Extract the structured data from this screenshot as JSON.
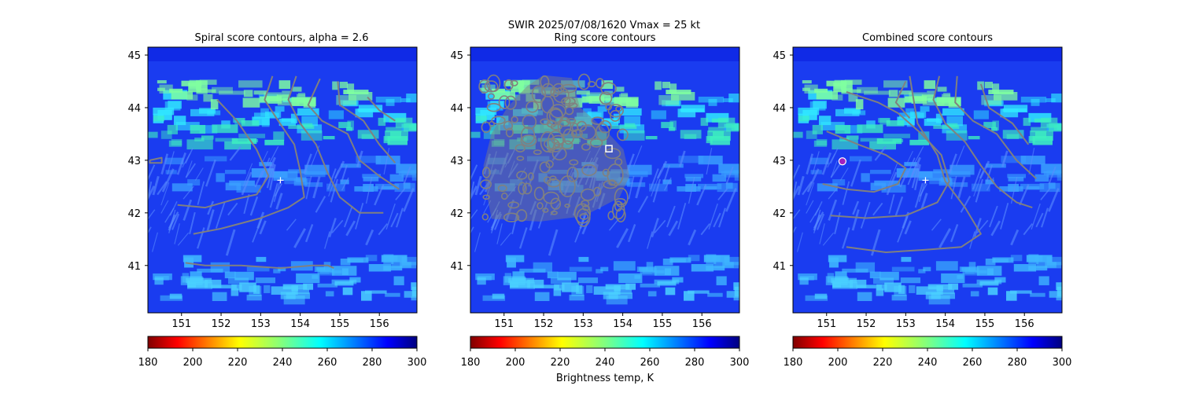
{
  "suptitle": {
    "line1": "SWIR  2025/07/08/1620    Vmax = 25 kt"
  },
  "colorbar": {
    "ticks": [
      "180",
      "200",
      "220",
      "240",
      "260",
      "280",
      "300"
    ],
    "range": [
      180,
      300
    ],
    "colormap": "jet_reversed",
    "label": "Brightness temp, K",
    "colors": [
      "#800000",
      "#ff0000",
      "#ff8000",
      "#ffff00",
      "#80ff80",
      "#00ffff",
      "#0080ff",
      "#0000ff",
      "#000080"
    ]
  },
  "colors": {
    "contour": "#808080",
    "background_field": "#1a3cf0",
    "marker": "#ffffff",
    "combined_marker_fill": "#a020c0"
  },
  "chart_data": [
    {
      "type": "heatmap",
      "title": "Spiral score contours, alpha =  2.6",
      "xticks": [
        "151",
        "152",
        "153",
        "154",
        "155",
        "156"
      ],
      "yticks": [
        "41",
        "42",
        "43",
        "44",
        "45"
      ],
      "xlim": [
        150.15,
        156.95
      ],
      "ylim": [
        40.1,
        45.15
      ],
      "marker": {
        "type": "plus",
        "lon": 153.5,
        "lat": 42.62
      },
      "contours": [
        [
          [
            151.9,
            44.15
          ],
          [
            152.4,
            43.75
          ],
          [
            152.9,
            43.2
          ],
          [
            153.2,
            42.7
          ],
          [
            152.9,
            42.35
          ],
          [
            152.3,
            42.25
          ],
          [
            151.6,
            42.1
          ],
          [
            150.9,
            42.15
          ]
        ],
        [
          [
            153.3,
            44.6
          ],
          [
            153.1,
            44.15
          ],
          [
            153.4,
            43.8
          ],
          [
            153.85,
            43.3
          ],
          [
            154.0,
            42.8
          ],
          [
            154.1,
            42.3
          ],
          [
            153.7,
            42.1
          ],
          [
            153.0,
            41.9
          ],
          [
            152.0,
            41.7
          ],
          [
            151.3,
            41.6
          ]
        ],
        [
          [
            153.9,
            44.6
          ],
          [
            153.7,
            44.15
          ],
          [
            154.0,
            43.7
          ],
          [
            154.4,
            43.3
          ],
          [
            154.7,
            42.75
          ],
          [
            155.0,
            42.3
          ],
          [
            155.5,
            42.0
          ],
          [
            156.1,
            42.0
          ]
        ],
        [
          [
            154.5,
            44.55
          ],
          [
            154.2,
            44.05
          ],
          [
            154.55,
            43.75
          ],
          [
            155.2,
            43.5
          ],
          [
            155.5,
            43.0
          ],
          [
            156.0,
            42.7
          ],
          [
            156.5,
            42.45
          ]
        ],
        [
          [
            154.95,
            44.5
          ],
          [
            155.0,
            44.05
          ],
          [
            155.6,
            43.75
          ],
          [
            156.0,
            43.3
          ],
          [
            156.4,
            42.95
          ]
        ],
        [
          [
            155.7,
            44.2
          ],
          [
            156.0,
            43.95
          ],
          [
            156.4,
            43.75
          ]
        ],
        [
          [
            151.1,
            41.05
          ],
          [
            151.6,
            41.0
          ],
          [
            152.5,
            41.0
          ],
          [
            153.5,
            40.95
          ],
          [
            154.3,
            41.0
          ],
          [
            154.7,
            41.0
          ],
          [
            154.85,
            40.95
          ]
        ],
        [
          [
            150.2,
            43.0
          ],
          [
            150.5,
            43.05
          ],
          [
            150.5,
            42.95
          ],
          [
            150.2,
            42.95
          ],
          [
            150.2,
            43.0
          ]
        ]
      ]
    },
    {
      "type": "heatmap",
      "title": "Ring score contours",
      "xticks": [
        "151",
        "152",
        "153",
        "154",
        "155",
        "156"
      ],
      "yticks": [
        "41",
        "42",
        "43",
        "44",
        "45"
      ],
      "xlim": [
        150.15,
        156.95
      ],
      "ylim": [
        40.1,
        45.15
      ],
      "marker": {
        "type": "square",
        "lon": 153.65,
        "lat": 43.22
      },
      "ring_region": [
        [
          152.0,
          44.6
        ],
        [
          152.7,
          44.55
        ],
        [
          152.9,
          44.0
        ],
        [
          153.5,
          43.6
        ],
        [
          154.0,
          43.2
        ],
        [
          154.15,
          42.7
        ],
        [
          153.9,
          42.3
        ],
        [
          153.0,
          41.95
        ],
        [
          151.9,
          41.85
        ],
        [
          150.7,
          41.9
        ],
        [
          150.6,
          42.3
        ],
        [
          150.5,
          42.9
        ],
        [
          150.7,
          43.5
        ],
        [
          151.1,
          44.0
        ],
        [
          151.6,
          44.4
        ]
      ]
    },
    {
      "type": "heatmap",
      "title": "Combined score contours",
      "xticks": [
        "151",
        "152",
        "153",
        "154",
        "155",
        "156"
      ],
      "yticks": [
        "41",
        "42",
        "43",
        "44",
        "45"
      ],
      "xlim": [
        150.15,
        156.95
      ],
      "ylim": [
        40.1,
        45.15
      ],
      "marker": {
        "type": "plus",
        "lon": 153.5,
        "lat": 42.62
      },
      "best_center": {
        "lon": 151.4,
        "lat": 42.98
      },
      "contours": [
        [
          [
            150.9,
            42.55
          ],
          [
            151.5,
            42.45
          ],
          [
            152.2,
            42.4
          ],
          [
            152.8,
            42.55
          ],
          [
            153.0,
            42.85
          ],
          [
            152.5,
            43.1
          ],
          [
            151.8,
            43.3
          ],
          [
            151.0,
            43.55
          ]
        ],
        [
          [
            151.1,
            41.95
          ],
          [
            152.0,
            41.9
          ],
          [
            153.0,
            41.95
          ],
          [
            153.8,
            42.2
          ],
          [
            154.1,
            42.6
          ],
          [
            153.9,
            43.1
          ],
          [
            153.4,
            43.5
          ],
          [
            152.8,
            43.9
          ],
          [
            152.3,
            44.1
          ],
          [
            151.5,
            44.3
          ]
        ],
        [
          [
            151.5,
            41.35
          ],
          [
            152.5,
            41.25
          ],
          [
            153.5,
            41.3
          ],
          [
            154.4,
            41.35
          ],
          [
            154.9,
            41.6
          ],
          [
            154.5,
            42.1
          ],
          [
            154.0,
            42.6
          ],
          [
            153.8,
            43.1
          ],
          [
            153.3,
            43.7
          ],
          [
            153.2,
            44.15
          ],
          [
            153.1,
            44.6
          ]
        ],
        [
          [
            153.85,
            44.6
          ],
          [
            153.7,
            44.15
          ],
          [
            154.0,
            43.7
          ],
          [
            154.5,
            43.35
          ],
          [
            154.9,
            42.9
          ],
          [
            155.3,
            42.5
          ],
          [
            155.8,
            42.2
          ],
          [
            156.2,
            42.1
          ]
        ],
        [
          [
            154.3,
            44.6
          ],
          [
            154.25,
            44.1
          ],
          [
            154.7,
            43.75
          ],
          [
            155.3,
            43.5
          ],
          [
            155.8,
            43.0
          ],
          [
            156.3,
            42.65
          ]
        ],
        [
          [
            154.9,
            44.45
          ],
          [
            155.1,
            44.0
          ],
          [
            155.7,
            43.7
          ],
          [
            156.1,
            43.3
          ]
        ],
        [
          [
            153.0,
            44.5
          ],
          [
            152.75,
            44.1
          ],
          [
            153.1,
            43.8
          ]
        ]
      ]
    }
  ]
}
